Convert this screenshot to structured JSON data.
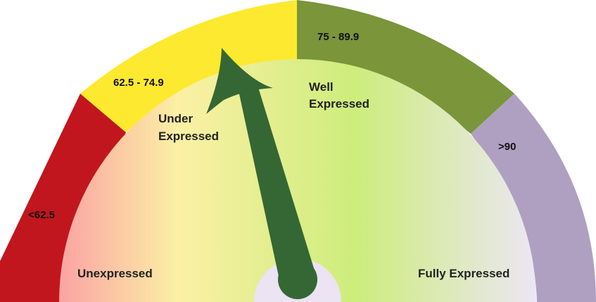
{
  "gauge": {
    "segments": [
      {
        "label": "<62.5",
        "color": "#c1161e"
      },
      {
        "label": "62.5 - 74.9",
        "color": "#fde92f"
      },
      {
        "label": "75 - 89.9",
        "color": "#7a953a"
      },
      {
        "label": ">90",
        "color": "#afa0c2"
      }
    ],
    "zones": {
      "unexpressed": "Unexpressed",
      "under_line1": "Under",
      "under_line2": "Expressed",
      "well_line1": "Well",
      "well_line2": "Expressed",
      "fully": "Fully Expressed"
    },
    "needle_color": "#356734",
    "hub_color": "#ece3f3",
    "inner_gradient": [
      "#fba3a3",
      "#fbf0a5",
      "#cded7c",
      "#ece6f4"
    ]
  }
}
